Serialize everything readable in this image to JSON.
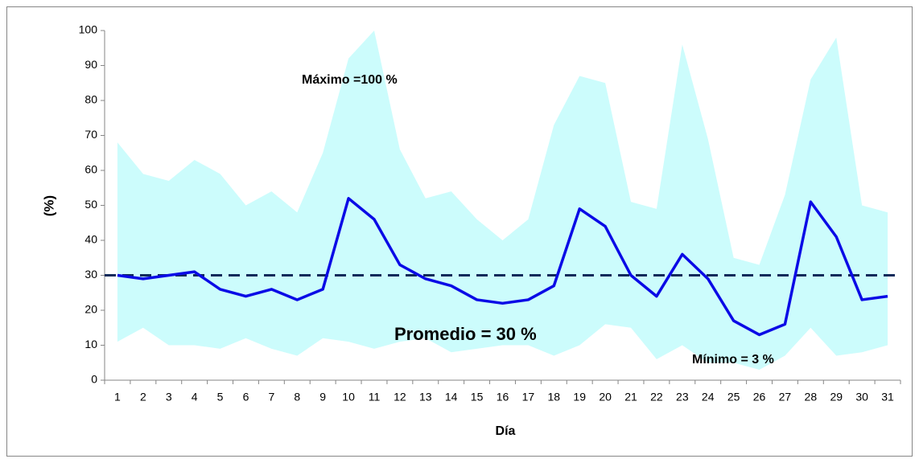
{
  "chart_data": {
    "type": "line",
    "x_label": "Día",
    "y_label": "(%)",
    "categories": [
      "1",
      "2",
      "3",
      "4",
      "5",
      "6",
      "7",
      "8",
      "9",
      "10",
      "11",
      "12",
      "13",
      "14",
      "15",
      "16",
      "17",
      "18",
      "19",
      "20",
      "21",
      "22",
      "23",
      "24",
      "25",
      "26",
      "27",
      "28",
      "29",
      "30",
      "31"
    ],
    "band": {
      "color": "#ccfcfc",
      "upper": [
        68,
        59,
        57,
        63,
        59,
        50,
        54,
        48,
        65,
        92,
        100,
        66,
        52,
        54,
        46,
        40,
        46,
        73,
        87,
        85,
        51,
        49,
        96,
        69,
        35,
        33,
        53,
        86,
        98,
        50,
        48
      ],
      "lower": [
        11,
        15,
        10,
        10,
        9,
        12,
        9,
        7,
        12,
        11,
        9,
        11,
        12,
        8,
        9,
        10,
        10,
        7,
        10,
        16,
        15,
        6,
        10,
        5,
        5,
        3,
        7,
        15,
        7,
        8,
        10
      ]
    },
    "series": [
      {
        "color": "#0a0ae6",
        "values": [
          30,
          29,
          30,
          31,
          26,
          24,
          26,
          23,
          26,
          52,
          46,
          33,
          29,
          27,
          23,
          22,
          23,
          27,
          49,
          44,
          30,
          24,
          36,
          29,
          17,
          13,
          16,
          51,
          41,
          23,
          24
        ]
      }
    ],
    "average_line": {
      "value": 30,
      "color": "#0d2a5a"
    },
    "annotations": [
      "Máximo =100  %",
      "Promedio = 30 %",
      "Mínimo = 3 %"
    ],
    "ylim": [
      0,
      100
    ],
    "yticks": [
      0,
      10,
      20,
      30,
      40,
      50,
      60,
      70,
      80,
      90,
      100
    ]
  }
}
